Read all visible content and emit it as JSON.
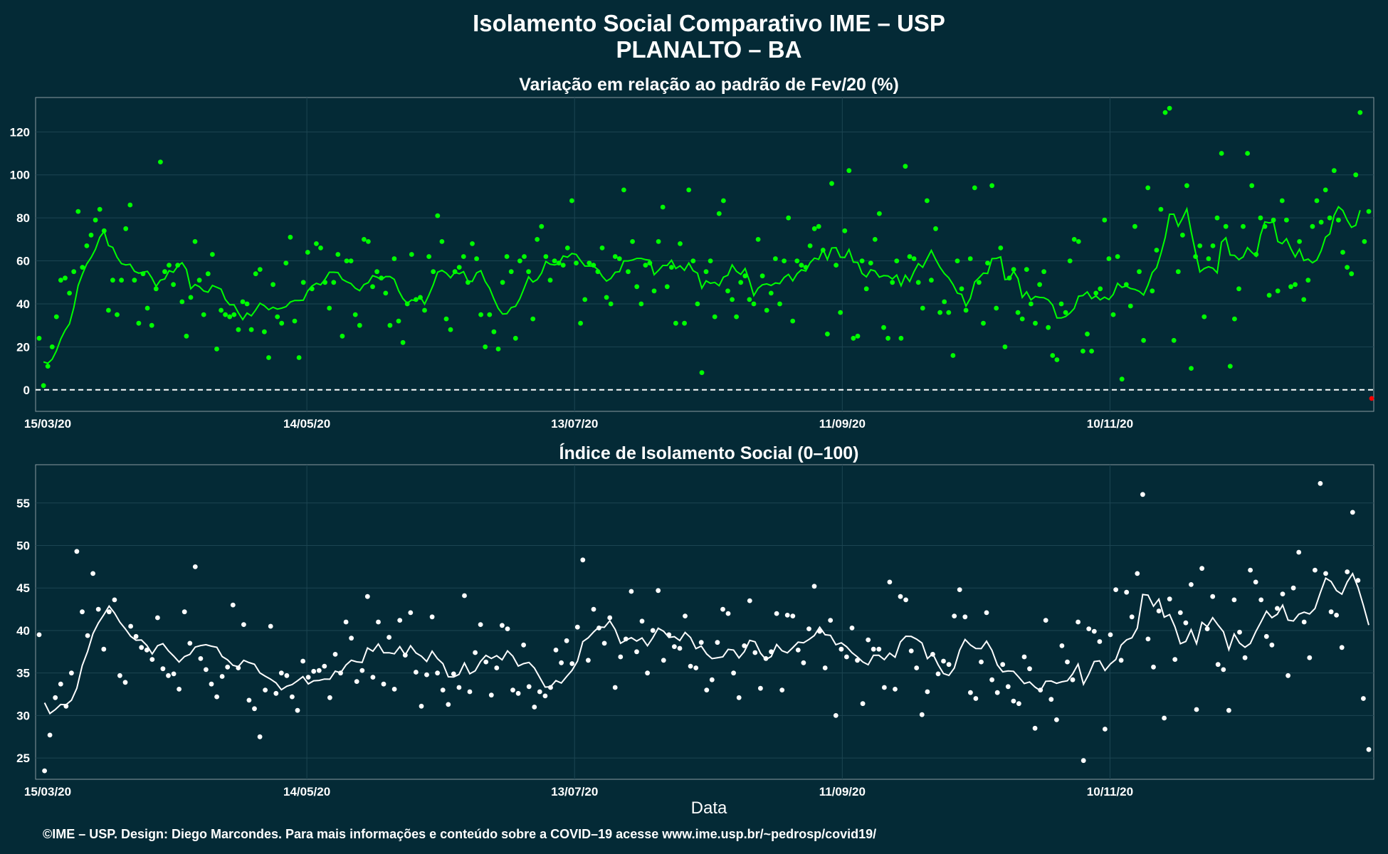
{
  "header": {
    "title_line1": "Isolamento Social Comparativo IME – USP",
    "title_line2": "PLANALTO – BA"
  },
  "footer": {
    "credit": "©IME – USP. Design: Diego Marcondes. Para mais informações e conteúdo sobre a COVID–19 acesse www.ime.usp.br/~pedrosp/covid19/"
  },
  "colors": {
    "background": "#042a36",
    "variation_points": "#00ff00",
    "variation_line": "#00ff00",
    "negative_point": "#ff0000",
    "index_points": "#ffffff",
    "index_line": "#ffffff",
    "zero_line": "#ffffff"
  },
  "chart_data": [
    {
      "type": "scatter",
      "title": "Variação em relação ao padrão de Fev/20 (%)",
      "xlabel": "",
      "ylabel": "",
      "x_start": "15/03/20",
      "x_ticks": [
        "15/03/20",
        "14/05/20",
        "13/07/20",
        "11/09/20",
        "10/11/20"
      ],
      "y_ticks": [
        0,
        20,
        40,
        60,
        80,
        100,
        120
      ],
      "ylim": [
        -10,
        136
      ],
      "reference_line": 0,
      "grid": true,
      "points": [
        24,
        2,
        11,
        20,
        34,
        51,
        52,
        45,
        55,
        83,
        57,
        67,
        72,
        79,
        84,
        74,
        37,
        51,
        35,
        51,
        75,
        86,
        51,
        31,
        54,
        38,
        30,
        47,
        106,
        55,
        58,
        49,
        58,
        41,
        25,
        43,
        69,
        51,
        35,
        54,
        63,
        19,
        37,
        35,
        34,
        35,
        28,
        41,
        40,
        28,
        54,
        56,
        27,
        15,
        49,
        34,
        31,
        59,
        71,
        32,
        15,
        50,
        64,
        47,
        68,
        66,
        50,
        38,
        50,
        63,
        25,
        60,
        60,
        35,
        30,
        70,
        69,
        48,
        55,
        52,
        45,
        30,
        61,
        32,
        22,
        40,
        63,
        42,
        43,
        37,
        62,
        55,
        81,
        69,
        33,
        28,
        55,
        57,
        62,
        50,
        68,
        61,
        35,
        20,
        35,
        27,
        19,
        50,
        62,
        55,
        24,
        60,
        62,
        55,
        33,
        70,
        76,
        62,
        51,
        60,
        59,
        58,
        66,
        88,
        59,
        31,
        42,
        59,
        58,
        55,
        66,
        43,
        40,
        62,
        61,
        93,
        55,
        69,
        48,
        40,
        58,
        59,
        46,
        69,
        85,
        48,
        57,
        31,
        68,
        31,
        93,
        60,
        40,
        8,
        55,
        60,
        34,
        82,
        88,
        46,
        42,
        34,
        50,
        53,
        42,
        40,
        70,
        53,
        37,
        45,
        61,
        40,
        60,
        80,
        32,
        60,
        58,
        57,
        67,
        75,
        76,
        65,
        26,
        96,
        58,
        36,
        74,
        102,
        24,
        25,
        60,
        47,
        59,
        70,
        82,
        29,
        24,
        50,
        60,
        24,
        104,
        62,
        61,
        50,
        38,
        88,
        51,
        75,
        36,
        41,
        36,
        16,
        60,
        47,
        37,
        61,
        94,
        50,
        31,
        59,
        95,
        38,
        66,
        20,
        52,
        56,
        36,
        33,
        56,
        40,
        31,
        49,
        55,
        29,
        16,
        14,
        40,
        36,
        60,
        70,
        69,
        18,
        26,
        18,
        45,
        47,
        79,
        61,
        35,
        62,
        5,
        49,
        39,
        76,
        55,
        23,
        94,
        46,
        65,
        84,
        129,
        131,
        23,
        55,
        72,
        95,
        10,
        62,
        67,
        34,
        61,
        67,
        80,
        110,
        76,
        11,
        33,
        47,
        76,
        110,
        95,
        63,
        80,
        76,
        44,
        79,
        46,
        88,
        79,
        48,
        49,
        69,
        42,
        51,
        76,
        88,
        78,
        93,
        80,
        102,
        79,
        64,
        57,
        54,
        100,
        129,
        69,
        83
      ]
    },
    {
      "type": "scatter",
      "title": "Índice de Isolamento Social (0–100)",
      "xlabel": "Data",
      "ylabel": "",
      "x_start": "15/03/20",
      "x_ticks": [
        "15/03/20",
        "14/05/20",
        "13/07/20",
        "11/09/20",
        "10/11/20"
      ],
      "y_ticks": [
        25,
        30,
        35,
        40,
        45,
        50,
        55
      ],
      "ylim": [
        22.5,
        59.5
      ],
      "grid": true,
      "points": [
        39.5,
        23.5,
        27.7,
        32.1,
        33.7,
        31.1,
        35.0,
        49.3,
        42.2,
        39.4,
        46.7,
        42.5,
        37.8,
        42.2,
        43.6,
        34.7,
        33.9,
        40.5,
        39.3,
        38.0,
        37.7,
        36.6,
        41.5,
        35.5,
        34.7,
        34.9,
        33.1,
        42.2,
        38.5,
        47.5,
        36.7,
        35.4,
        33.7,
        32.2,
        34.6,
        35.7,
        43.0,
        35.6,
        40.7,
        31.8,
        30.8,
        27.5,
        33.0,
        40.5,
        32.6,
        35.0,
        34.7,
        32.2,
        30.6,
        36.4,
        34.5,
        35.2,
        35.3,
        35.8,
        32.1,
        37.2,
        35.0,
        41.0,
        39.1,
        34.0,
        35.3,
        44.0,
        34.5,
        41.0,
        33.7,
        39.2,
        33.1,
        41.2,
        37.1,
        42.1,
        35.1,
        31.1,
        34.8,
        41.6,
        35.0,
        33.0,
        31.3,
        34.9,
        33.3,
        44.1,
        32.8,
        37.4,
        40.7,
        36.3,
        32.4,
        35.6,
        40.6,
        40.2,
        33.0,
        32.6,
        38.3,
        33.4,
        31.0,
        32.8,
        32.3,
        33.3,
        37.7,
        36.2,
        38.8,
        36.1,
        40.4,
        48.3,
        36.5,
        42.5,
        40.3,
        38.5,
        41.5,
        33.3,
        36.9,
        39.0,
        44.6,
        37.5,
        41.1,
        35.0,
        40.0,
        44.7,
        36.5,
        39.5,
        38.1,
        37.9,
        41.7,
        35.8,
        35.6,
        38.6,
        33.0,
        34.2,
        38.6,
        42.5,
        42.0,
        35.0,
        32.1,
        38.2,
        43.5,
        37.4,
        33.2,
        36.7,
        37.5,
        42.0,
        33.0,
        41.8,
        41.7,
        37.7,
        36.2,
        40.2,
        45.2,
        39.9,
        35.6,
        41.2,
        30.0,
        37.8,
        36.9,
        40.3,
        36.5,
        31.4,
        38.9,
        37.8,
        37.8,
        33.3,
        45.7,
        33.1,
        44.0,
        43.6,
        37.6,
        35.6,
        30.1,
        32.8,
        37.2,
        34.9,
        36.4,
        36.0,
        41.7,
        44.8,
        41.6,
        32.7,
        32.0,
        36.3,
        42.1,
        34.2,
        32.7,
        36.0,
        33.4,
        31.7,
        31.4,
        36.9,
        35.5,
        28.5,
        33.0,
        41.2,
        31.9,
        29.5,
        38.2,
        36.3,
        34.2,
        41.0,
        24.7,
        40.2,
        39.9,
        38.7,
        28.4,
        39.5,
        44.8,
        36.5,
        44.5,
        41.6,
        46.7,
        56.0,
        39.0,
        35.7,
        42.3,
        29.7,
        43.7,
        36.6,
        42.1,
        40.9,
        45.4,
        30.7,
        47.3,
        40.2,
        44.0,
        36.0,
        35.4,
        30.6,
        43.6,
        39.8,
        36.8,
        47.1,
        45.7,
        43.6,
        39.3,
        38.3,
        42.6,
        44.3,
        34.7,
        45.0,
        49.2,
        41.0,
        36.8,
        47.1,
        57.3,
        46.7,
        42.2,
        41.8,
        38.0,
        46.9,
        53.9,
        45.9,
        32.0,
        26.0
      ]
    }
  ]
}
